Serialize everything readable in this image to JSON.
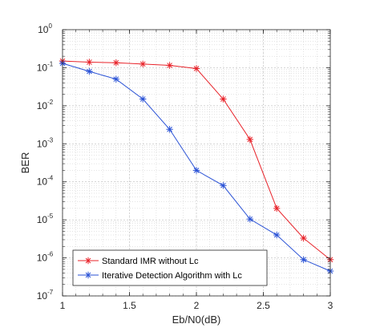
{
  "chart_data": {
    "type": "line",
    "xlabel": "Eb/N0(dB)",
    "ylabel": "BER",
    "yscale": "log",
    "xlim": [
      1,
      3
    ],
    "ylim": [
      1e-07,
      1
    ],
    "grid": true,
    "minor_grid": true,
    "legend_position": "bottom-left",
    "x_ticks": [
      {
        "value": 1,
        "label": "1"
      },
      {
        "value": 1.5,
        "label": "1.5"
      },
      {
        "value": 2,
        "label": "2"
      },
      {
        "value": 2.5,
        "label": "2.5"
      },
      {
        "value": 3,
        "label": "3"
      }
    ],
    "y_ticks": [
      {
        "value": 1,
        "base": "10",
        "exp": "0"
      },
      {
        "value": 0.1,
        "base": "10",
        "exp": "-1"
      },
      {
        "value": 0.01,
        "base": "10",
        "exp": "-2"
      },
      {
        "value": 0.001,
        "base": "10",
        "exp": "-3"
      },
      {
        "value": 0.0001,
        "base": "10",
        "exp": "-4"
      },
      {
        "value": 1e-05,
        "base": "10",
        "exp": "-5"
      },
      {
        "value": 1e-06,
        "base": "10",
        "exp": "-6"
      },
      {
        "value": 1e-07,
        "base": "10",
        "exp": "-7"
      }
    ],
    "x": [
      1,
      1.2,
      1.4,
      1.6,
      1.8,
      2,
      2.2,
      2.4,
      2.6,
      2.8,
      3
    ],
    "series": [
      {
        "name": "Standard IMR without Lc",
        "color": "#e8232a",
        "marker": "asterisk",
        "values": [
          0.15,
          0.14,
          0.135,
          0.125,
          0.115,
          0.095,
          0.015,
          0.0013,
          2e-05,
          3.3e-06,
          9e-07
        ]
      },
      {
        "name": "Iterative Detection Algorithm with Lc",
        "color": "#2a52d6",
        "marker": "asterisk",
        "values": [
          0.13,
          0.08,
          0.05,
          0.015,
          0.0024,
          0.0002,
          8e-05,
          1.05e-05,
          4e-06,
          9e-07,
          4.5e-07
        ]
      }
    ]
  }
}
